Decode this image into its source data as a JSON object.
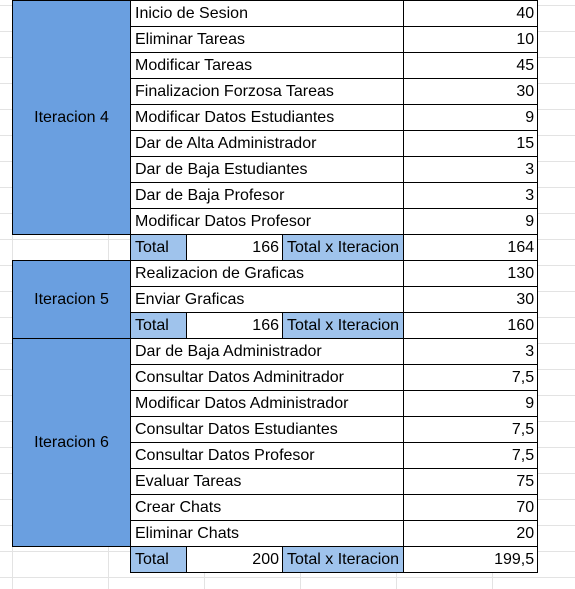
{
  "iterations": [
    {
      "label": "Iteracion 4",
      "tasks": [
        {
          "name": "Inicio de Sesion",
          "value": "40"
        },
        {
          "name": "Eliminar Tareas",
          "value": "10"
        },
        {
          "name": "Modificar Tareas",
          "value": "45"
        },
        {
          "name": "Finalizacion Forzosa Tareas",
          "value": "30"
        },
        {
          "name": "Modificar Datos Estudiantes",
          "value": "9"
        },
        {
          "name": "Dar de Alta Administrador",
          "value": "15"
        },
        {
          "name": "Dar de Baja Estudiantes",
          "value": "3"
        },
        {
          "name": "Dar de Baja Profesor",
          "value": "3"
        },
        {
          "name": "Modificar Datos Profesor",
          "value": "9"
        }
      ],
      "total": {
        "label": "Total",
        "value": "166",
        "iter_label": "Total x Iteracion",
        "iter_value": "164"
      }
    },
    {
      "label": "Iteracion 5",
      "tasks": [
        {
          "name": "Realizacion de Graficas",
          "value": "130"
        },
        {
          "name": "Enviar Graficas",
          "value": "30"
        }
      ],
      "total": {
        "label": "Total",
        "value": "166",
        "iter_label": "Total x Iteracion",
        "iter_value": "160"
      }
    },
    {
      "label": "Iteracion 6",
      "tasks": [
        {
          "name": "Dar de Baja Administrador",
          "value": "3"
        },
        {
          "name": "Consultar Datos Adminitrador",
          "value": "7,5"
        },
        {
          "name": "Modificar Datos Administrador",
          "value": "9"
        },
        {
          "name": "Consultar Datos Estudiantes",
          "value": "7,5"
        },
        {
          "name": "Consultar Datos Profesor",
          "value": "7,5"
        },
        {
          "name": "Evaluar Tareas",
          "value": "75"
        },
        {
          "name": "Crear Chats",
          "value": "70"
        },
        {
          "name": "Eliminar Chats",
          "value": "20"
        }
      ],
      "total": {
        "label": "Total",
        "value": "200",
        "iter_label": "Total x Iteracion",
        "iter_value": "199,5"
      }
    }
  ],
  "colors": {
    "iteration_fill": "#6a9fe0",
    "total_fill": "#9fc3ec",
    "gridline": "#e3e3e3"
  }
}
